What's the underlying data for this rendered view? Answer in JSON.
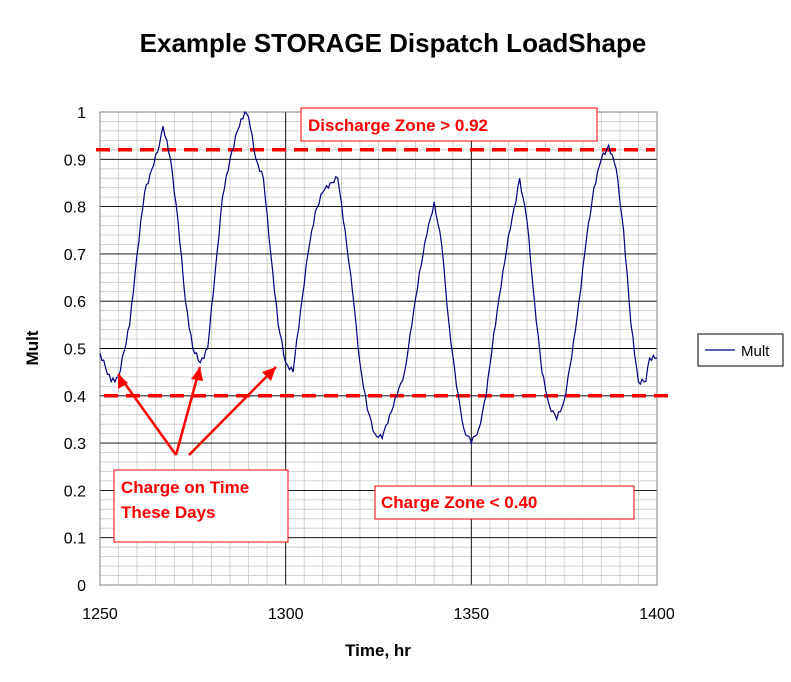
{
  "chart_data": {
    "type": "line",
    "title": "Example STORAGE Dispatch LoadShape",
    "xlabel": "Time, hr",
    "ylabel": "Mult",
    "xlim": [
      1250,
      1400
    ],
    "ylim": [
      0,
      1
    ],
    "x_ticks": [
      "1250",
      "1300",
      "1350",
      "1400"
    ],
    "y_ticks": [
      "0",
      "0.1",
      "0.2",
      "0.3",
      "0.4",
      "0.5",
      "0.6",
      "0.7",
      "0.8",
      "0.9",
      "1"
    ],
    "grid": "major and minor",
    "legend": "right",
    "series": [
      {
        "name": "Mult",
        "color": "#000080",
        "x": [
          1250,
          1253,
          1255,
          1258,
          1260,
          1262,
          1264,
          1266,
          1267,
          1269,
          1271,
          1273,
          1275,
          1277,
          1279,
          1281,
          1283,
          1285,
          1287,
          1289,
          1290,
          1292,
          1294,
          1296,
          1298,
          1300,
          1302,
          1304,
          1306,
          1308,
          1310,
          1312,
          1314,
          1316,
          1318,
          1320,
          1322,
          1324,
          1326,
          1328,
          1330,
          1332,
          1334,
          1336,
          1338,
          1340,
          1342,
          1344,
          1346,
          1348,
          1350,
          1352,
          1354,
          1356,
          1358,
          1360,
          1362,
          1363,
          1365,
          1367,
          1369,
          1371,
          1373,
          1375,
          1377,
          1379,
          1381,
          1383,
          1385,
          1387,
          1389,
          1391,
          1393,
          1395,
          1397,
          1398,
          1400
        ],
        "values": [
          0.49,
          0.43,
          0.44,
          0.55,
          0.7,
          0.83,
          0.88,
          0.93,
          0.97,
          0.9,
          0.77,
          0.6,
          0.5,
          0.47,
          0.5,
          0.66,
          0.82,
          0.9,
          0.96,
          1.0,
          0.99,
          0.9,
          0.86,
          0.7,
          0.55,
          0.47,
          0.45,
          0.58,
          0.7,
          0.79,
          0.83,
          0.85,
          0.86,
          0.75,
          0.62,
          0.47,
          0.37,
          0.32,
          0.31,
          0.36,
          0.4,
          0.45,
          0.55,
          0.66,
          0.74,
          0.81,
          0.72,
          0.55,
          0.42,
          0.33,
          0.3,
          0.33,
          0.4,
          0.53,
          0.63,
          0.74,
          0.81,
          0.86,
          0.77,
          0.6,
          0.45,
          0.38,
          0.35,
          0.39,
          0.48,
          0.6,
          0.73,
          0.84,
          0.9,
          0.93,
          0.88,
          0.75,
          0.55,
          0.43,
          0.43,
          0.48,
          0.48
        ]
      }
    ],
    "reference_lines": [
      {
        "y": 0.92,
        "color": "#ff0000",
        "style": "dashed"
      },
      {
        "y": 0.4,
        "color": "#ff0000",
        "style": "dashed"
      }
    ],
    "annotations": {
      "discharge": "Discharge Zone > 0.92",
      "charge_zone": "Charge Zone < 0.40",
      "charge_time_line1": "Charge on Time",
      "charge_time_line2": "These Days"
    }
  }
}
